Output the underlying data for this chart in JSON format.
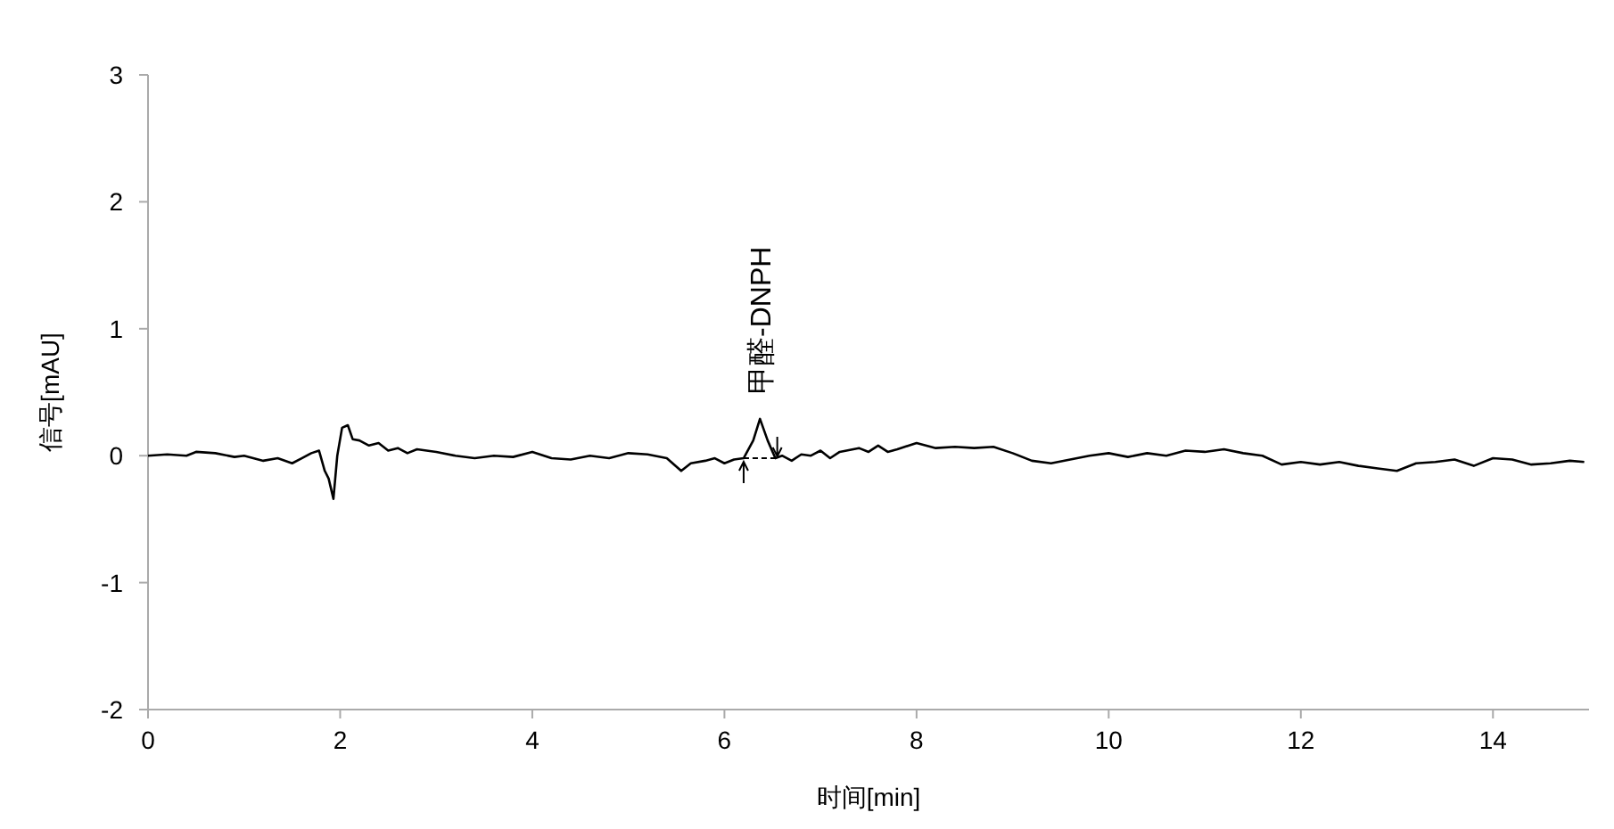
{
  "chart_data": {
    "type": "line",
    "xlabel": "时间[min]",
    "ylabel": "信号[mAU]",
    "xlim": [
      0,
      15
    ],
    "ylim": [
      -2,
      3
    ],
    "xticks": [
      0,
      2,
      4,
      6,
      8,
      10,
      12,
      14
    ],
    "yticks": [
      -2,
      -1,
      0,
      1,
      2,
      3
    ],
    "marker": "none",
    "line_style": "solid",
    "annotations": [
      {
        "text": "甲醛-DNPH",
        "x": 6.37,
        "y": 0.29
      }
    ],
    "series": [
      {
        "color": "#000000",
        "x": [
          0,
          0.2,
          0.4,
          0.5,
          0.7,
          0.9,
          1.0,
          1.2,
          1.35,
          1.5,
          1.6,
          1.7,
          1.78,
          1.84,
          1.88,
          1.93,
          1.97,
          2.02,
          2.08,
          2.13,
          2.2,
          2.3,
          2.4,
          2.5,
          2.6,
          2.7,
          2.8,
          2.9,
          3.0,
          3.2,
          3.4,
          3.6,
          3.8,
          4.0,
          4.2,
          4.4,
          4.6,
          4.8,
          5.0,
          5.2,
          5.4,
          5.55,
          5.65,
          5.8,
          5.9,
          6.0,
          6.1,
          6.2,
          6.3,
          6.37,
          6.45,
          6.53,
          6.6,
          6.7,
          6.8,
          6.9,
          7.0,
          7.1,
          7.2,
          7.4,
          7.5,
          7.6,
          7.7,
          7.8,
          8.0,
          8.2,
          8.4,
          8.6,
          8.8,
          9.0,
          9.2,
          9.4,
          9.6,
          9.8,
          10.0,
          10.2,
          10.4,
          10.6,
          10.8,
          11.0,
          11.2,
          11.4,
          11.6,
          11.8,
          12.0,
          12.2,
          12.4,
          12.6,
          12.8,
          13.0,
          13.2,
          13.4,
          13.6,
          13.8,
          14.0,
          14.2,
          14.4,
          14.6,
          14.8,
          14.95
        ],
        "values": [
          0.0,
          0.01,
          0.0,
          0.03,
          0.02,
          -0.01,
          0.0,
          -0.04,
          -0.02,
          -0.06,
          -0.02,
          0.02,
          0.04,
          -0.12,
          -0.18,
          -0.34,
          0.0,
          0.22,
          0.24,
          0.13,
          0.12,
          0.08,
          0.1,
          0.04,
          0.06,
          0.02,
          0.05,
          0.04,
          0.03,
          0.0,
          -0.02,
          0.0,
          -0.01,
          0.03,
          -0.02,
          -0.03,
          0.0,
          -0.02,
          0.02,
          0.01,
          -0.02,
          -0.12,
          -0.06,
          -0.04,
          -0.02,
          -0.06,
          -0.03,
          -0.02,
          0.12,
          0.29,
          0.12,
          -0.02,
          0.0,
          -0.04,
          0.01,
          0.0,
          0.04,
          -0.02,
          0.03,
          0.06,
          0.03,
          0.08,
          0.03,
          0.05,
          0.1,
          0.06,
          0.07,
          0.06,
          0.07,
          0.02,
          -0.04,
          -0.06,
          -0.03,
          0.0,
          0.02,
          -0.01,
          0.02,
          0.0,
          0.04,
          0.03,
          0.05,
          0.02,
          0.0,
          -0.07,
          -0.05,
          -0.07,
          -0.05,
          -0.08,
          -0.1,
          -0.12,
          -0.06,
          -0.05,
          -0.03,
          -0.08,
          -0.02,
          -0.03,
          -0.07,
          -0.06,
          -0.04,
          -0.05
        ]
      }
    ]
  }
}
